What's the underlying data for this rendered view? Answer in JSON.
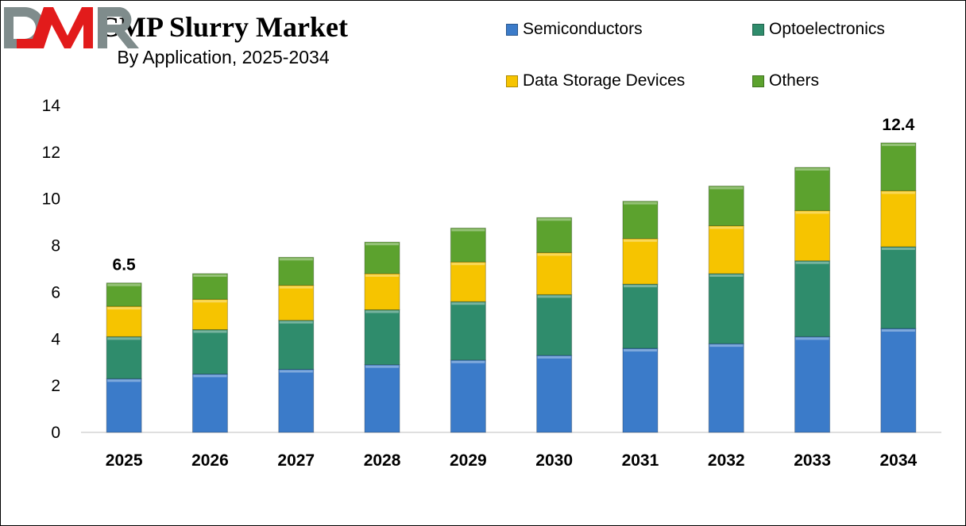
{
  "chart_data": {
    "type": "bar",
    "stacked": true,
    "title": "CMP Slurry Market",
    "subtitle": "By Application, 2025-2034",
    "categories": [
      "2025",
      "2026",
      "2027",
      "2028",
      "2029",
      "2030",
      "2031",
      "2032",
      "2033",
      "2034"
    ],
    "series": [
      {
        "name": "Semiconductors",
        "color": "#3b7bc9",
        "values": [
          2.3,
          2.5,
          2.7,
          2.9,
          3.1,
          3.3,
          3.6,
          3.8,
          4.1,
          4.45
        ]
      },
      {
        "name": "Optoelectronics",
        "color": "#2f8c6c",
        "values": [
          1.8,
          1.9,
          2.1,
          2.35,
          2.5,
          2.6,
          2.75,
          3.0,
          3.25,
          3.5
        ]
      },
      {
        "name": "Data Storage Devices",
        "color": "#f6c400",
        "values": [
          1.3,
          1.3,
          1.5,
          1.55,
          1.7,
          1.8,
          1.95,
          2.05,
          2.15,
          2.4
        ]
      },
      {
        "name": "Others",
        "color": "#5ca22e",
        "values": [
          1.0,
          1.1,
          1.2,
          1.35,
          1.45,
          1.5,
          1.6,
          1.7,
          1.85,
          2.05
        ]
      }
    ],
    "annotations": [
      {
        "category": "2025",
        "label": "6.5"
      },
      {
        "category": "2034",
        "label": "12.4"
      }
    ],
    "ylim": [
      0,
      14
    ],
    "yticks": [
      0,
      2,
      4,
      6,
      8,
      10,
      12,
      14
    ],
    "grid": false,
    "legend": "top-right"
  },
  "logo": {
    "text": "DMR"
  }
}
